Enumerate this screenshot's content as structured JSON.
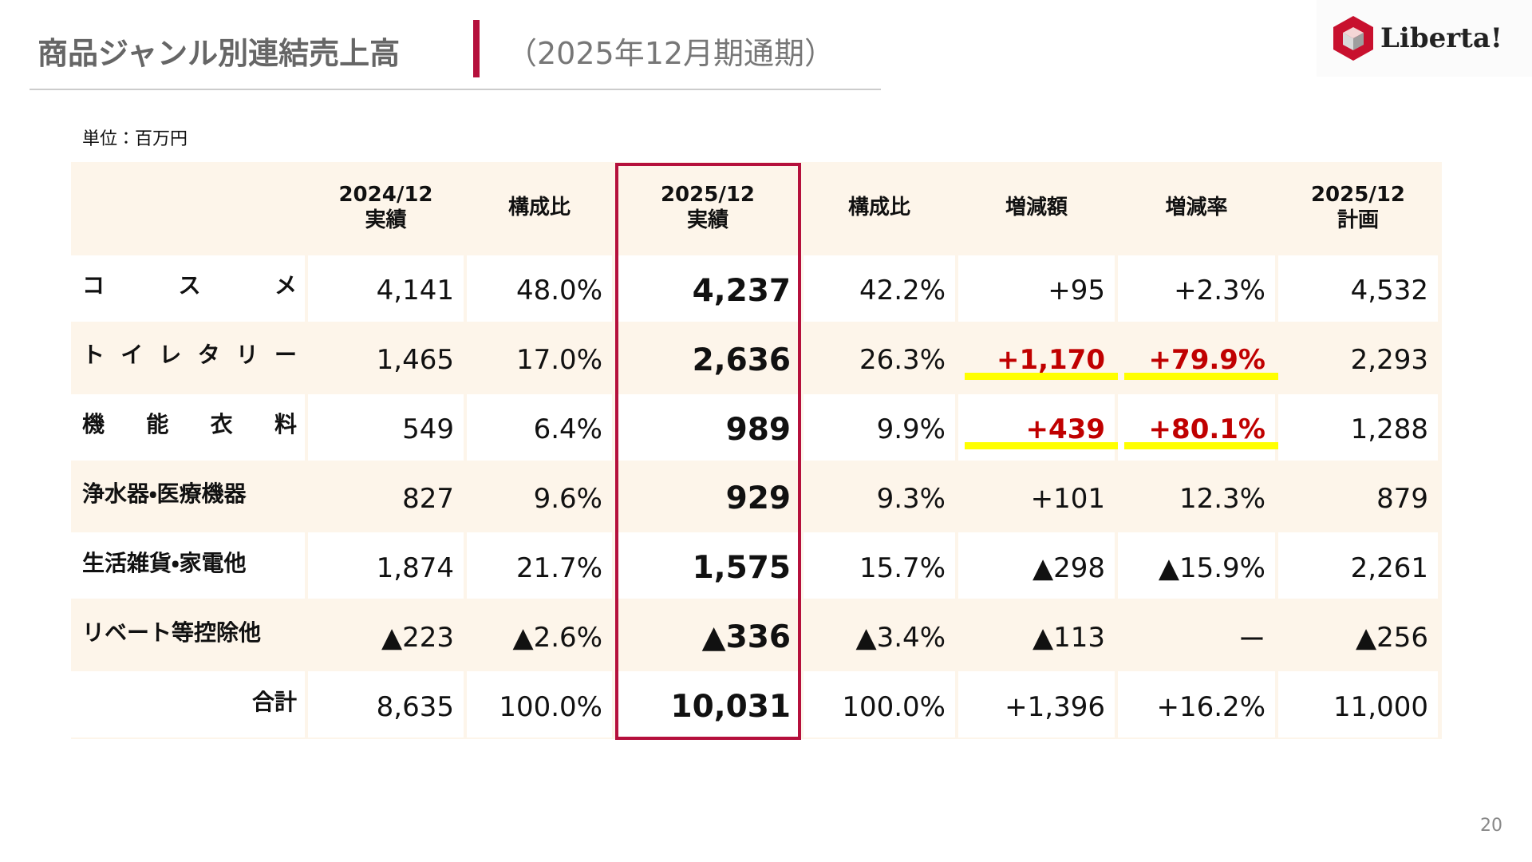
{
  "header": {
    "title": "商品ジャンル別連結売上高",
    "subtitle": "（2025年12月期通期）",
    "logo": "Liberta!"
  },
  "unit_note": "単位：百万円",
  "table": {
    "columns": [
      [],
      [
        "2024/12",
        "実績"
      ],
      [
        "構成比"
      ],
      [
        "2025/12",
        "実績"
      ],
      [
        "構成比"
      ],
      [
        "増減額"
      ],
      [
        "増減率"
      ],
      [
        "2025/12",
        "計画"
      ]
    ],
    "rows": [
      [
        "コスメ",
        "4,141",
        "48.0%",
        "4,237",
        "42.2%",
        "+95",
        "+2.3%",
        "4,532"
      ],
      [
        "トイレタリー",
        "1,465",
        "17.0%",
        "2,636",
        "26.3%",
        {
          "text": "+1,170",
          "highlight": true
        },
        {
          "text": "+79.9%",
          "highlight": true
        },
        "2,293"
      ],
      [
        "機能衣料",
        "549",
        "6.4%",
        "989",
        "9.9%",
        {
          "text": "+439",
          "highlight": true
        },
        {
          "text": "+80.1%",
          "highlight": true
        },
        "1,288"
      ],
      [
        "浄水器・医療機器",
        "827",
        "9.6%",
        "929",
        "9.3%",
        "+101",
        "12.3%",
        "879"
      ],
      [
        "生活雑貨・家電他",
        "1,874",
        "21.7%",
        "1,575",
        "15.7%",
        "▲298",
        "▲15.9%",
        "2,261"
      ],
      [
        "リベート等控除他",
        "▲223",
        "▲2.6%",
        "▲336",
        "▲3.4%",
        "▲113",
        "ー",
        "▲256"
      ],
      [
        "合計",
        "8,635",
        "100.0%",
        "10,031",
        "100.0%",
        "+1,396",
        "+16.2%",
        "11,000"
      ]
    ]
  },
  "page_number": "20"
}
